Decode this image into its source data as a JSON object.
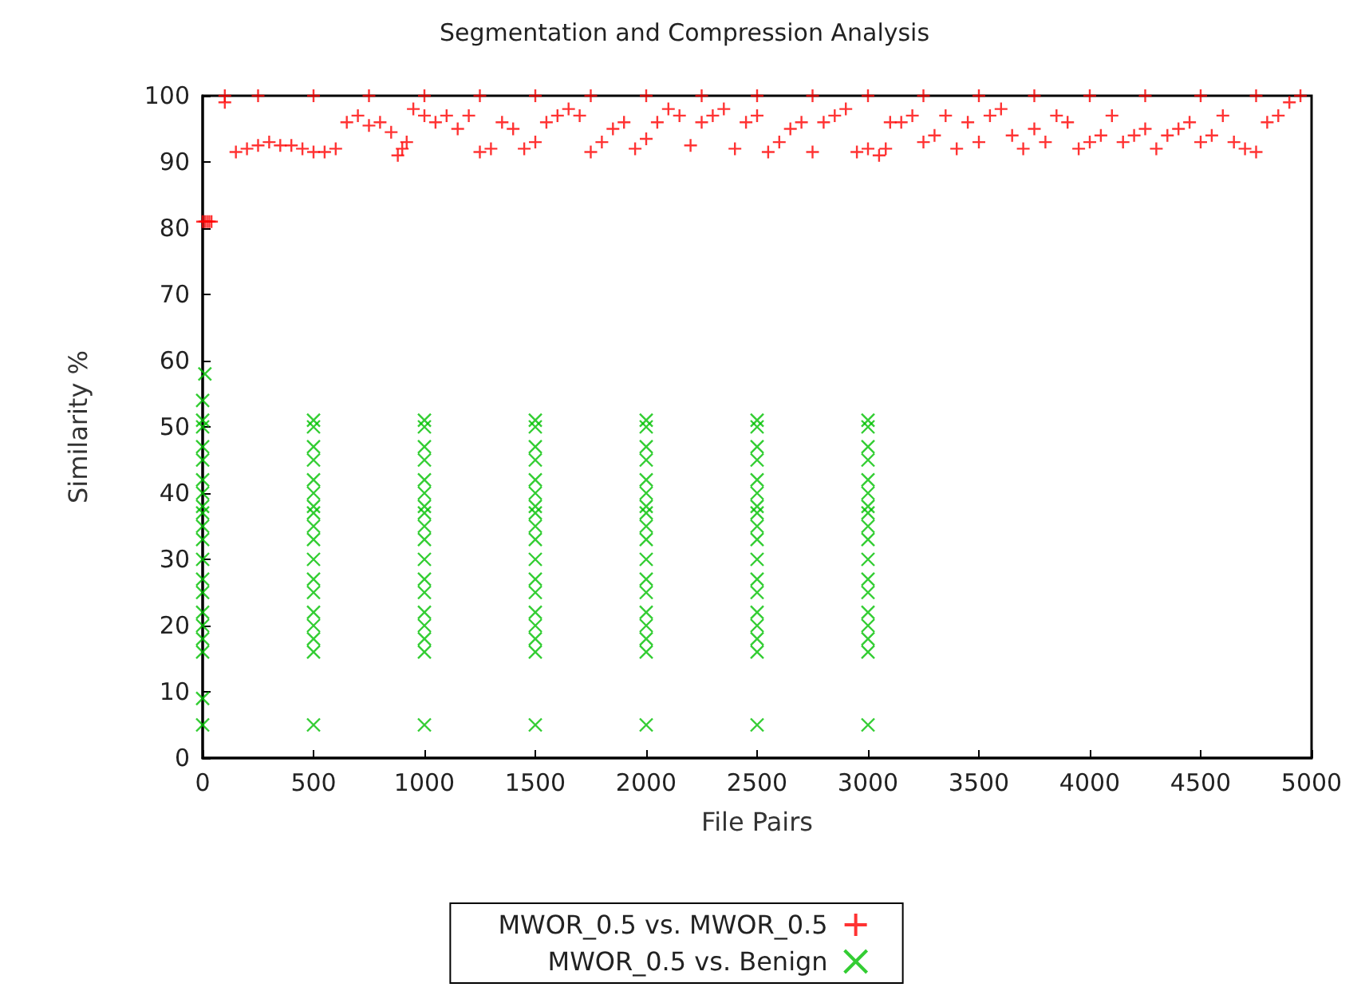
{
  "chart_data": {
    "type": "scatter",
    "title": "Segmentation and Compression Analysis",
    "xlabel": "File Pairs",
    "ylabel": "Similarity %",
    "xlim": [
      0,
      5000
    ],
    "xticks": [
      0,
      500,
      1000,
      1500,
      2000,
      2500,
      3000,
      3500,
      4000,
      4500,
      5000
    ],
    "ylim": [
      0,
      100
    ],
    "yticks": [
      0,
      10,
      20,
      30,
      40,
      50,
      60,
      70,
      80,
      90,
      100
    ],
    "grid": false,
    "legend": "bottom",
    "series": [
      {
        "name": "MWOR_0.5 vs. MWOR_0.5",
        "color": "#ff0000",
        "marker": "cross",
        "x": [
          0,
          10,
          20,
          30,
          40,
          100,
          100,
          150,
          200,
          250,
          300,
          350,
          400,
          450,
          500,
          550,
          600,
          650,
          700,
          750,
          800,
          850,
          880,
          900,
          920,
          950,
          1000,
          1050,
          1100,
          1150,
          1200,
          1250,
          1300,
          1350,
          1400,
          1450,
          1500,
          1550,
          1600,
          1650,
          1700,
          1750,
          1800,
          1850,
          1900,
          1950,
          2000,
          2050,
          2100,
          2150,
          2200,
          2250,
          2300,
          2350,
          2400,
          2450,
          2500,
          2550,
          2600,
          2650,
          2700,
          2750,
          2800,
          2850,
          2900,
          2950,
          3000,
          3050,
          3080,
          3100,
          3150,
          3200,
          3250,
          3300,
          3350,
          3400,
          3450,
          3500,
          3550,
          3600,
          3650,
          3700,
          3750,
          3800,
          3850,
          3900,
          3950,
          4000,
          4050,
          4100,
          4150,
          4200,
          4250,
          4300,
          4350,
          4400,
          4450,
          4500,
          4550,
          4600,
          4650,
          4700,
          4750,
          4800,
          4850,
          4900,
          4950,
          250,
          500,
          750,
          1000,
          1250,
          1500,
          1750,
          2000,
          2250,
          2500,
          2750,
          3000,
          3250,
          3500,
          3750,
          4000,
          4250,
          4500,
          4750
        ],
        "values": [
          81,
          81,
          81,
          81,
          81,
          100,
          99,
          91.5,
          92,
          92.5,
          93,
          92.5,
          92.5,
          92,
          91.5,
          91.5,
          92,
          96,
          97,
          95.5,
          96,
          94.5,
          91,
          92,
          93,
          98,
          97,
          96,
          97,
          95,
          97,
          91.5,
          92,
          96,
          95,
          92,
          93,
          96,
          97,
          98,
          97,
          91.5,
          93,
          95,
          96,
          92,
          93.5,
          96,
          98,
          97,
          92.5,
          96,
          97,
          98,
          92,
          96,
          97,
          91.5,
          93,
          95,
          96,
          91.5,
          96,
          97,
          98,
          91.5,
          92,
          91,
          92,
          96,
          96,
          97,
          93,
          94,
          97,
          92,
          96,
          93,
          97,
          98,
          94,
          92,
          95,
          93,
          97,
          96,
          92,
          93,
          94,
          97,
          93,
          94,
          95,
          92,
          94,
          95,
          96,
          93,
          94,
          97,
          93,
          92,
          91.5,
          96,
          97,
          99,
          100,
          100,
          100,
          100,
          100,
          100,
          100,
          100,
          100,
          100,
          100,
          100,
          100,
          100,
          100,
          100,
          100,
          100,
          100,
          100
        ]
      },
      {
        "name": "MWOR_0.5 vs. Benign",
        "color": "#00c000",
        "marker": "x",
        "x": [
          0,
          0,
          10,
          0,
          500,
          1000,
          1500,
          2000,
          2500,
          3000,
          0,
          500,
          1000,
          1500,
          2000,
          2500,
          3000,
          0,
          500,
          1000,
          1500,
          2000,
          2500,
          3000,
          0,
          500,
          1000,
          1500,
          2000,
          2500,
          3000,
          0,
          500,
          1000,
          1500,
          2000,
          2500,
          3000,
          0,
          500,
          1000,
          1500,
          2000,
          2500,
          3000,
          0,
          500,
          1000,
          1500,
          2000,
          2500,
          3000,
          0,
          500,
          1000,
          1500,
          2000,
          2500,
          3000,
          0,
          500,
          1000,
          1500,
          2000,
          2500,
          3000,
          0,
          500,
          1000,
          1500,
          2000,
          2500,
          3000,
          0,
          500,
          1000,
          1500,
          2000,
          2500,
          3000,
          0,
          500,
          1000,
          1500,
          2000,
          2500,
          3000,
          0,
          500,
          1000,
          1500,
          2000,
          2500,
          3000,
          0,
          500,
          1000,
          1500,
          2000,
          2500,
          3000,
          0,
          500,
          1000,
          1500,
          2000,
          2500,
          3000,
          0,
          500,
          1000,
          1500,
          2000,
          2500,
          3000,
          0,
          500,
          1000,
          1500,
          2000,
          2500,
          3000,
          0,
          500,
          1000,
          1500,
          2000,
          2500,
          3000
        ],
        "values": [
          9,
          54,
          58,
          5,
          5,
          5,
          5,
          5,
          5,
          5,
          16,
          16,
          16,
          16,
          16,
          16,
          16,
          18,
          18,
          18,
          18,
          18,
          18,
          18,
          20,
          20,
          20,
          20,
          20,
          20,
          20,
          22,
          22,
          22,
          22,
          22,
          22,
          22,
          25,
          25,
          25,
          25,
          25,
          25,
          25,
          27,
          27,
          27,
          27,
          27,
          27,
          27,
          30,
          30,
          30,
          30,
          30,
          30,
          30,
          33,
          33,
          33,
          33,
          33,
          33,
          33,
          35,
          35,
          35,
          35,
          35,
          35,
          35,
          37,
          37,
          37,
          37,
          37,
          37,
          37,
          38,
          38,
          38,
          38,
          38,
          38,
          38,
          40,
          40,
          40,
          40,
          40,
          40,
          40,
          42,
          42,
          42,
          42,
          42,
          42,
          42,
          45,
          45,
          45,
          45,
          45,
          45,
          45,
          47,
          47,
          47,
          47,
          47,
          47,
          47,
          50,
          50,
          50,
          50,
          50,
          50,
          50,
          51,
          51,
          51,
          51,
          51,
          51,
          51
        ]
      }
    ]
  }
}
